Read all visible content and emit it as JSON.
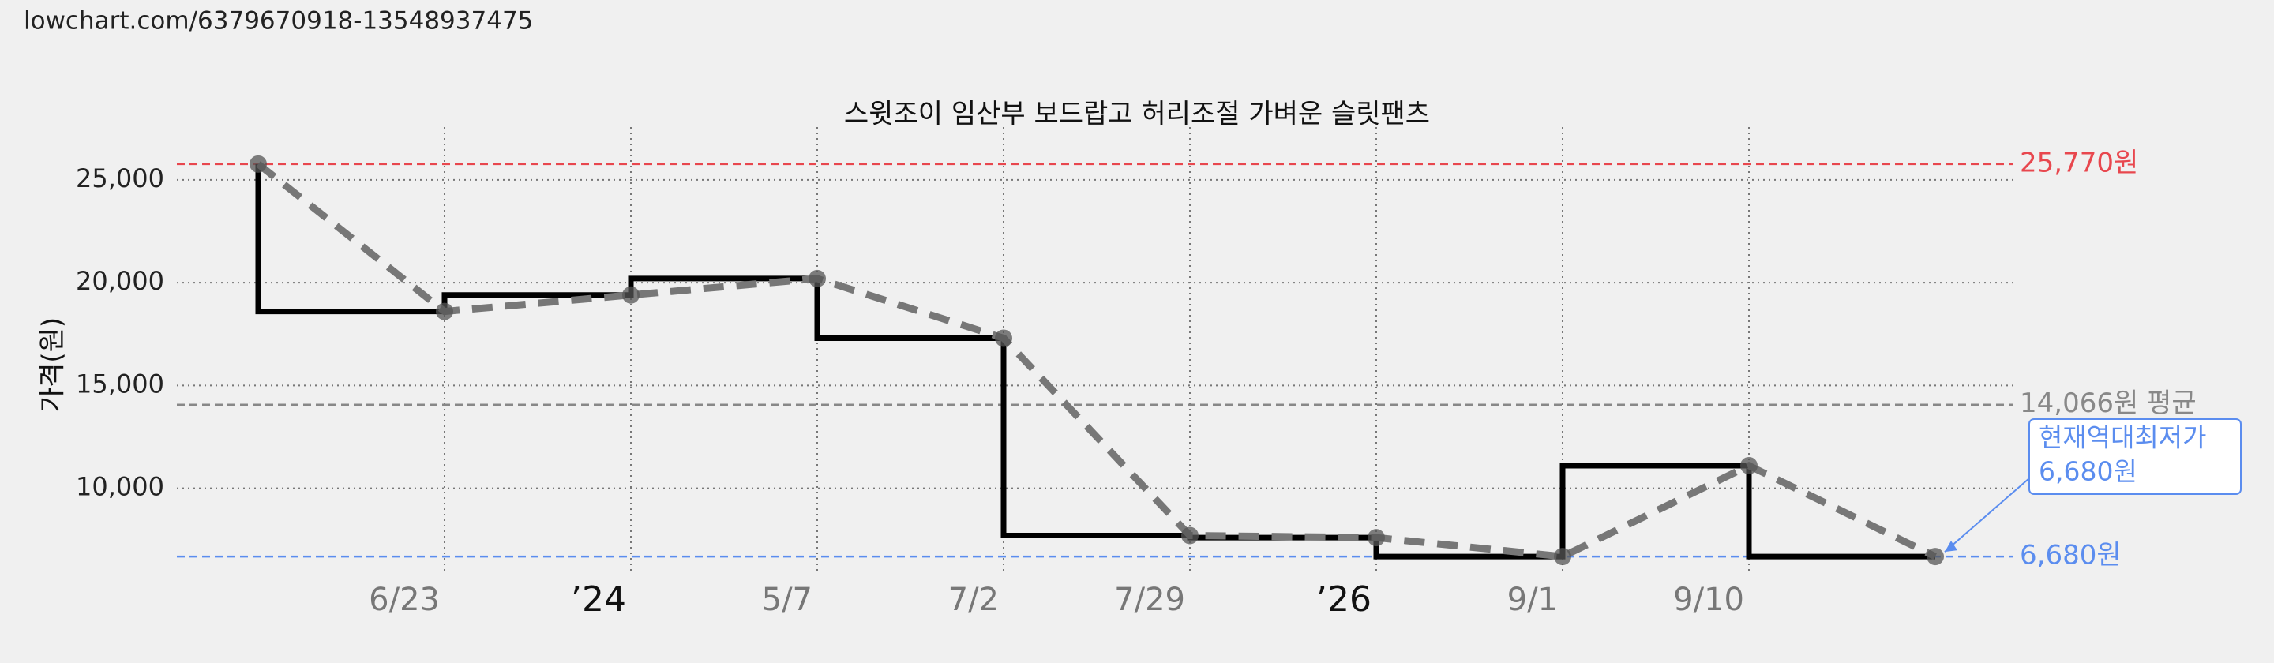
{
  "header": "lowchart.com/6379670918-13548937475",
  "chart_data": {
    "type": "line",
    "title": "스윗조이 임산부 보드랍고 허리조절 가벼운 슬릿팬츠",
    "y_label": "가격(원)",
    "categories": [
      null,
      "6/23",
      "’24",
      "5/7",
      "7/2",
      "7/29",
      "’26",
      "9/1",
      "9/10",
      null
    ],
    "values": [
      25770,
      18600,
      19400,
      20200,
      17300,
      7700,
      7600,
      6680,
      11100,
      6680
    ],
    "color": "#000000",
    "trend_color": "#777777",
    "ylim": [
      5800,
      26800
    ],
    "yticks": [
      {
        "value": 10000,
        "label": "10,000"
      },
      {
        "value": 15000,
        "label": "15,000"
      },
      {
        "value": 20000,
        "label": "20,000"
      },
      {
        "value": 25000,
        "label": "25,000"
      }
    ],
    "grid": true,
    "reference_lines": [
      {
        "value": 25770,
        "label": "25,770원",
        "color": "#e8474e"
      },
      {
        "value": 14066,
        "label": "14,066원 평균",
        "color": "#888888"
      },
      {
        "value": 6680,
        "label": "6,680원",
        "color": "#5b8def"
      }
    ],
    "annotation": [
      "현재역대최저가",
      "6,680원"
    ]
  }
}
